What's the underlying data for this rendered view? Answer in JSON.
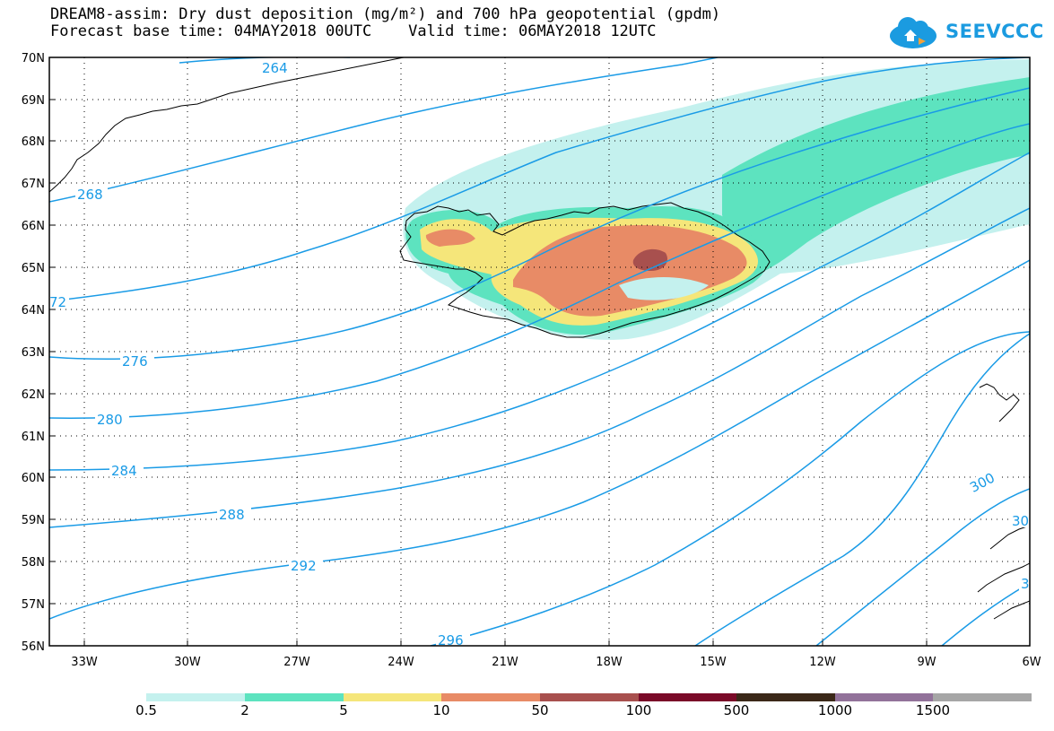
{
  "title_line1": "DREAM8-assim: Dry dust deposition (mg/m²) and 700 hPa geopotential (gpdm)",
  "title_line2": "Forecast base time: 04MAY2018 00UTC    Valid time: 06MAY2018 12UTC",
  "logo_text": "SEEVCCC",
  "lat_labels": [
    "70N",
    "69N",
    "68N",
    "67N",
    "66N",
    "65N",
    "64N",
    "63N",
    "62N",
    "61N",
    "60N",
    "59N",
    "58N",
    "57N",
    "56N"
  ],
  "lon_labels": [
    "33W",
    "30W",
    "27W",
    "24W",
    "21W",
    "18W",
    "15W",
    "12W",
    "9W",
    "6W"
  ],
  "contour_labels": [
    "264",
    "268",
    "72",
    "276",
    "280",
    "284",
    "288",
    "292",
    "296",
    "300",
    "30",
    "3"
  ],
  "legend": {
    "colors": [
      "#c4f1ee",
      "#5de3bf",
      "#f5e67a",
      "#e88b66",
      "#a8504e",
      "#7a0a28",
      "#3b2818",
      "#92729a",
      "#a6a6a6"
    ],
    "labels": [
      "0.5",
      "2",
      "5",
      "10",
      "50",
      "100",
      "500",
      "1000",
      "1500"
    ]
  },
  "colors": {
    "contour": "#1a9be6",
    "coast": "#000000"
  }
}
